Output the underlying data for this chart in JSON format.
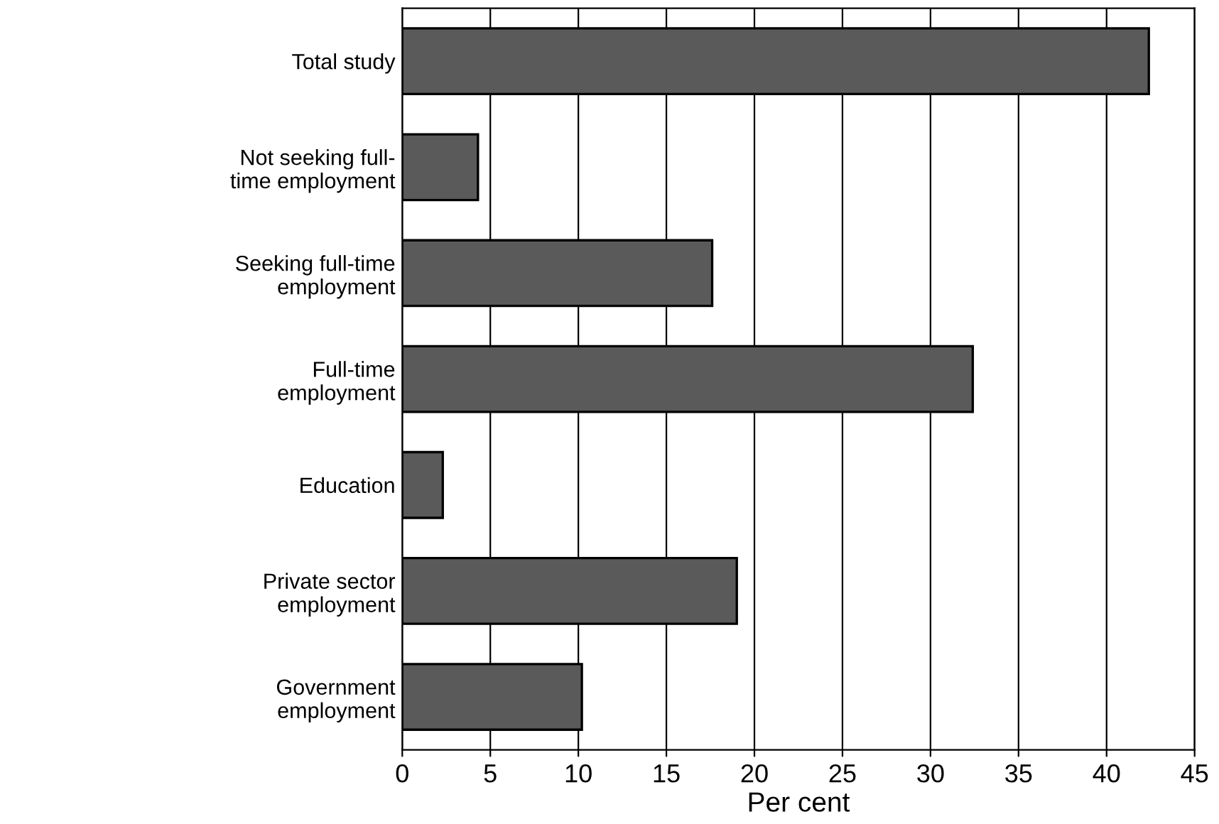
{
  "chart_data": {
    "type": "bar",
    "orientation": "horizontal",
    "xlabel": "Per cent",
    "categories": [
      "Total study",
      "Not seeking full-\ntime employment",
      "Seeking full-time\nemployment",
      "Full-time\nemployment",
      "Education",
      "Private sector\nemployment",
      "Government\nemployment"
    ],
    "values": [
      42.4,
      4.3,
      17.6,
      32.4,
      2.3,
      19.0,
      10.2
    ],
    "color": "#5a5a5a",
    "xlim": [
      0,
      45
    ],
    "xticks": [
      0,
      5,
      10,
      15,
      20,
      25,
      30,
      35,
      40,
      45
    ],
    "grid": "x",
    "legend": false
  }
}
